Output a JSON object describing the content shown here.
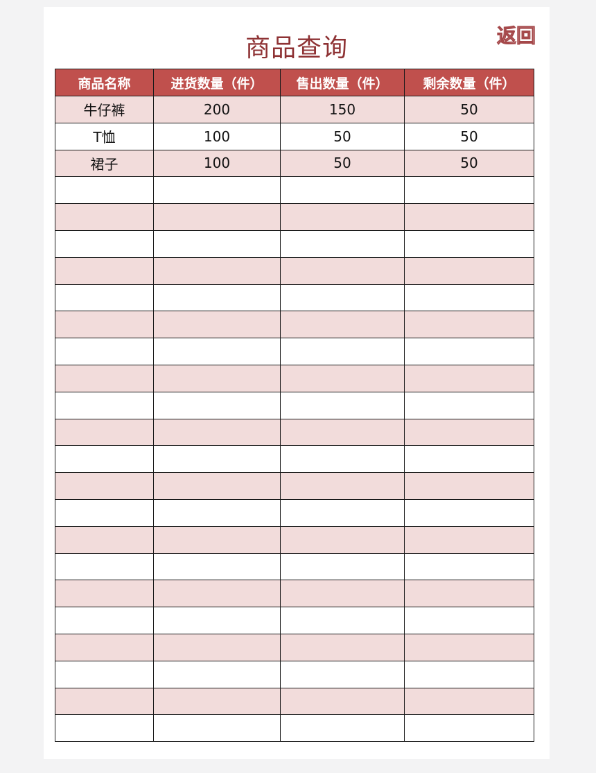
{
  "title": "商品查询",
  "back_label": "返回",
  "colors": {
    "header_bg": "#c0504d",
    "stripe_bg": "#f2dcdb",
    "title_color": "#8e3234"
  },
  "table": {
    "columns": [
      "商品名称",
      "进货数量（件）",
      "售出数量（件）",
      "剩余数量（件）"
    ],
    "rows": [
      [
        "牛仔裤",
        "200",
        "150",
        "50"
      ],
      [
        "T恤",
        "100",
        "50",
        "50"
      ],
      [
        "裙子",
        "100",
        "50",
        "50"
      ]
    ]
  }
}
